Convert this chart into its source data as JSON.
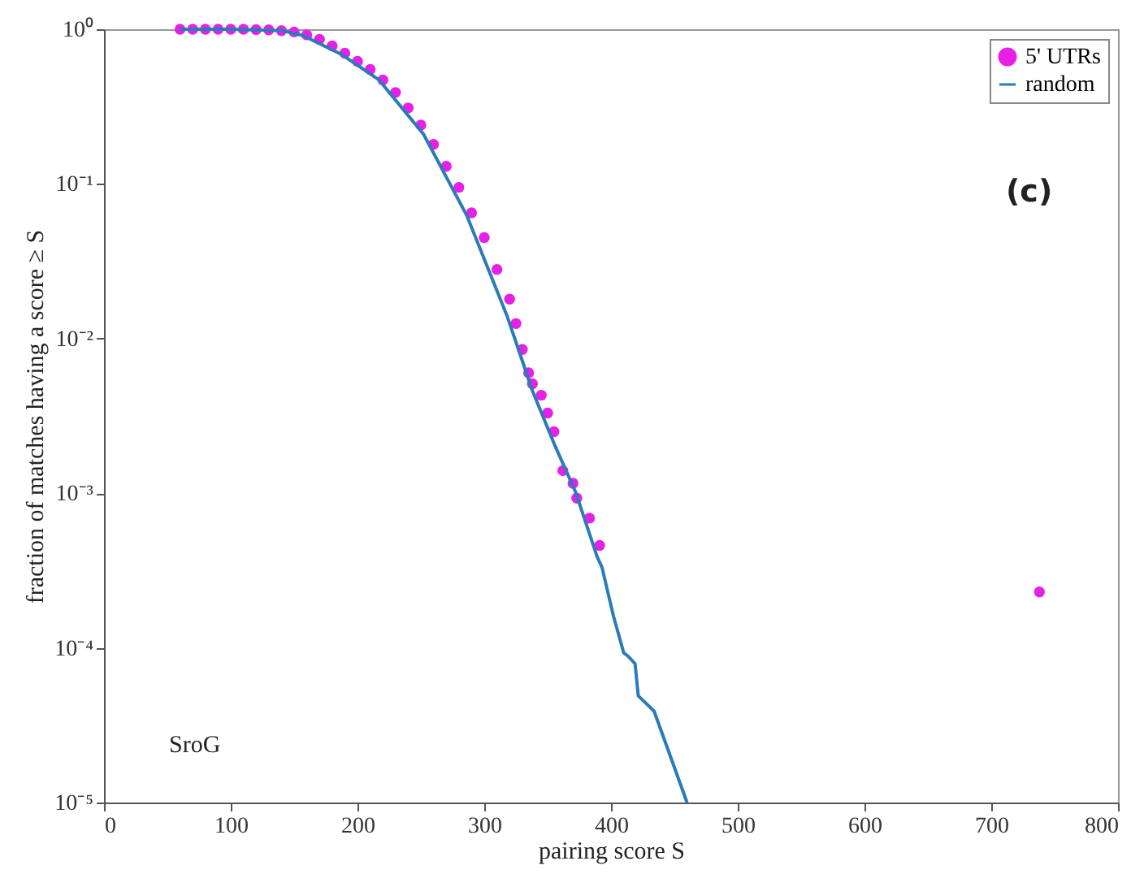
{
  "chart_data": {
    "type": "scatter",
    "xlabel": "pairing score S",
    "ylabel": "fraction of matches having a score ≥ S",
    "annotations": [
      "SroG",
      "(c)"
    ],
    "xlim": [
      0,
      800
    ],
    "xticks": [
      0,
      100,
      200,
      300,
      400,
      500,
      600,
      700,
      800
    ],
    "ylim": [
      1e-05,
      1
    ],
    "log": true,
    "yticks": [
      {
        "value": 1,
        "label": "10⁰"
      },
      {
        "value": 0.1,
        "label": "10⁻¹"
      },
      {
        "value": 0.01,
        "label": "10⁻²"
      },
      {
        "value": 0.001,
        "label": "10⁻³"
      },
      {
        "value": 0.0001,
        "label": "10⁻⁴"
      },
      {
        "value": 1e-05,
        "label": "10⁻⁵"
      }
    ],
    "grid": false,
    "legend": "top right",
    "series": [
      {
        "name": "5' UTRs",
        "marker": "circle",
        "color": "#e620e6",
        "x": [
          60,
          70,
          80,
          90,
          100,
          110,
          120,
          130,
          140,
          150,
          160,
          170,
          180,
          190,
          200,
          210,
          220,
          230,
          240,
          250,
          260,
          270,
          280,
          290,
          300,
          310,
          320,
          325,
          330,
          335,
          338,
          345,
          350,
          355,
          362,
          370,
          373,
          383,
          391,
          738
        ],
        "values": [
          1,
          1,
          1,
          1,
          1,
          1,
          0.995,
          0.99,
          0.98,
          0.96,
          0.92,
          0.86,
          0.78,
          0.7,
          0.62,
          0.55,
          0.47,
          0.39,
          0.31,
          0.24,
          0.18,
          0.13,
          0.095,
          0.065,
          0.045,
          0.028,
          0.018,
          0.0125,
          0.0085,
          0.006,
          0.0051,
          0.0043,
          0.0033,
          0.0025,
          0.0014,
          0.00116,
          0.00093,
          0.00069,
          0.00046,
          0.00023
        ]
      },
      {
        "name": "random",
        "type": "line",
        "line_style": "solid",
        "color": "#2b7bb9",
        "x": [
          60,
          100,
          140,
          157,
          187,
          217,
          252,
          286,
          318,
          338,
          355,
          372,
          389,
          393,
          398,
          402,
          410,
          413,
          419,
          421.5,
          434,
          460
        ],
        "values": [
          1,
          1,
          0.98,
          0.91,
          0.69,
          0.47,
          0.21,
          0.063,
          0.014,
          0.0046,
          0.0021,
          0.00102,
          0.00039,
          0.00033,
          0.00022,
          0.00016,
          9.3e-05,
          8.9e-05,
          7.9e-05,
          4.9e-05,
          3.9e-05,
          1e-05
        ]
      }
    ]
  }
}
